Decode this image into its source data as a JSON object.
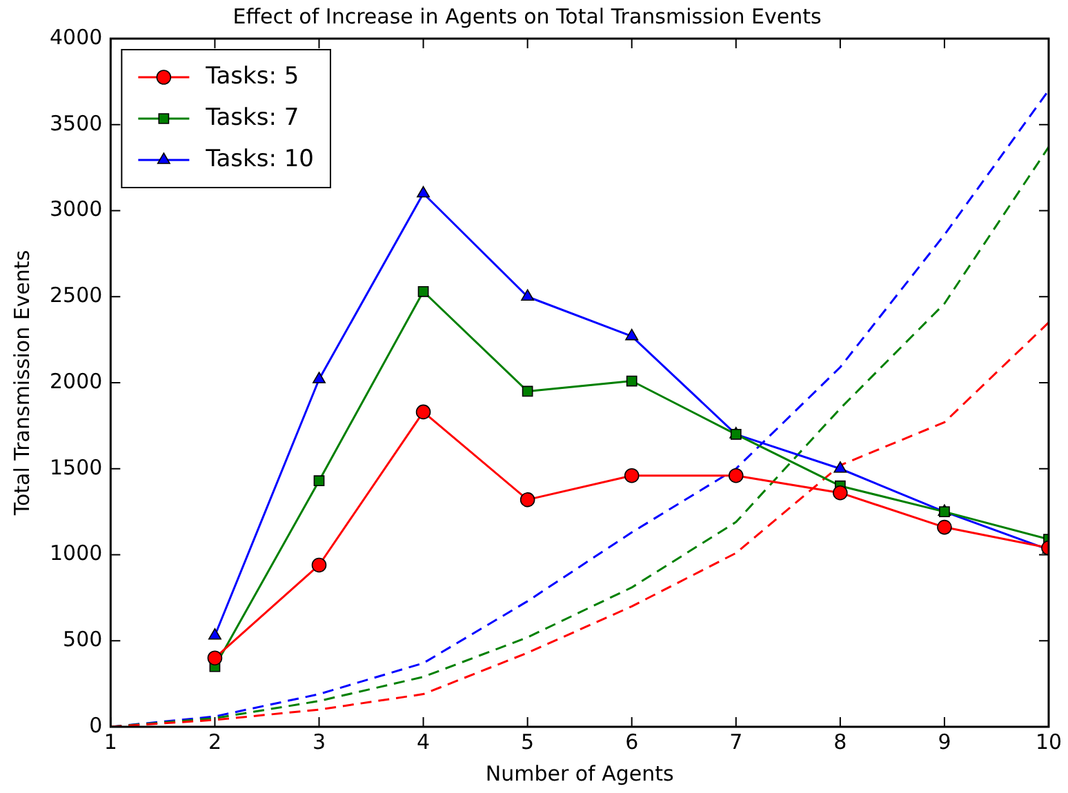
{
  "chart_data": {
    "type": "line",
    "title": "Effect of Increase in Agents on Total Transmission Events",
    "xlabel": "Number of Agents",
    "ylabel": "Total Transmission Events",
    "xlim": [
      1,
      10
    ],
    "xticks": [
      1,
      2,
      3,
      4,
      5,
      6,
      7,
      8,
      9,
      10
    ],
    "ylim": [
      0,
      4000
    ],
    "yticks": [
      0,
      500,
      1000,
      1500,
      2000,
      2500,
      3000,
      3500,
      4000
    ],
    "grid": false,
    "legend": "top left",
    "series": [
      {
        "name": "Tasks: 5",
        "color": "#ff0000",
        "marker": "circle",
        "line_style": "solid",
        "x": [
          2,
          3,
          4,
          5,
          6,
          7,
          8,
          9,
          10
        ],
        "values": [
          400,
          940,
          1830,
          1320,
          1460,
          1460,
          1360,
          1160,
          1040
        ]
      },
      {
        "name": "Tasks: 7",
        "color": "#008000",
        "marker": "square",
        "line_style": "solid",
        "x": [
          2,
          3,
          4,
          5,
          6,
          7,
          8,
          9,
          10
        ],
        "values": [
          350,
          1430,
          2530,
          1950,
          2010,
          1700,
          1400,
          1250,
          1090
        ]
      },
      {
        "name": "Tasks: 10",
        "color": "#0000ff",
        "marker": "triangle",
        "line_style": "solid",
        "x": [
          2,
          3,
          4,
          5,
          6,
          7,
          8,
          9,
          10
        ],
        "values": [
          530,
          2020,
          3100,
          2500,
          2270,
          1700,
          1500,
          1250,
          1030
        ]
      },
      {
        "color": "#ff0000",
        "marker": "none",
        "line_style": "dashed",
        "x": [
          1,
          2,
          3,
          4,
          5,
          6,
          7,
          8,
          9,
          10
        ],
        "values": [
          0,
          40,
          100,
          190,
          430,
          700,
          1010,
          1520,
          1770,
          2350
        ]
      },
      {
        "color": "#008000",
        "marker": "none",
        "line_style": "dashed",
        "x": [
          1,
          2,
          3,
          4,
          5,
          6,
          7,
          8,
          9,
          10
        ],
        "values": [
          0,
          50,
          150,
          290,
          520,
          810,
          1190,
          1850,
          2460,
          3370
        ]
      },
      {
        "color": "#0000ff",
        "marker": "none",
        "line_style": "dashed",
        "x": [
          1,
          2,
          3,
          4,
          5,
          6,
          7,
          8,
          9,
          10
        ],
        "values": [
          0,
          60,
          190,
          370,
          730,
          1130,
          1500,
          2090,
          2860,
          3700
        ]
      }
    ]
  }
}
